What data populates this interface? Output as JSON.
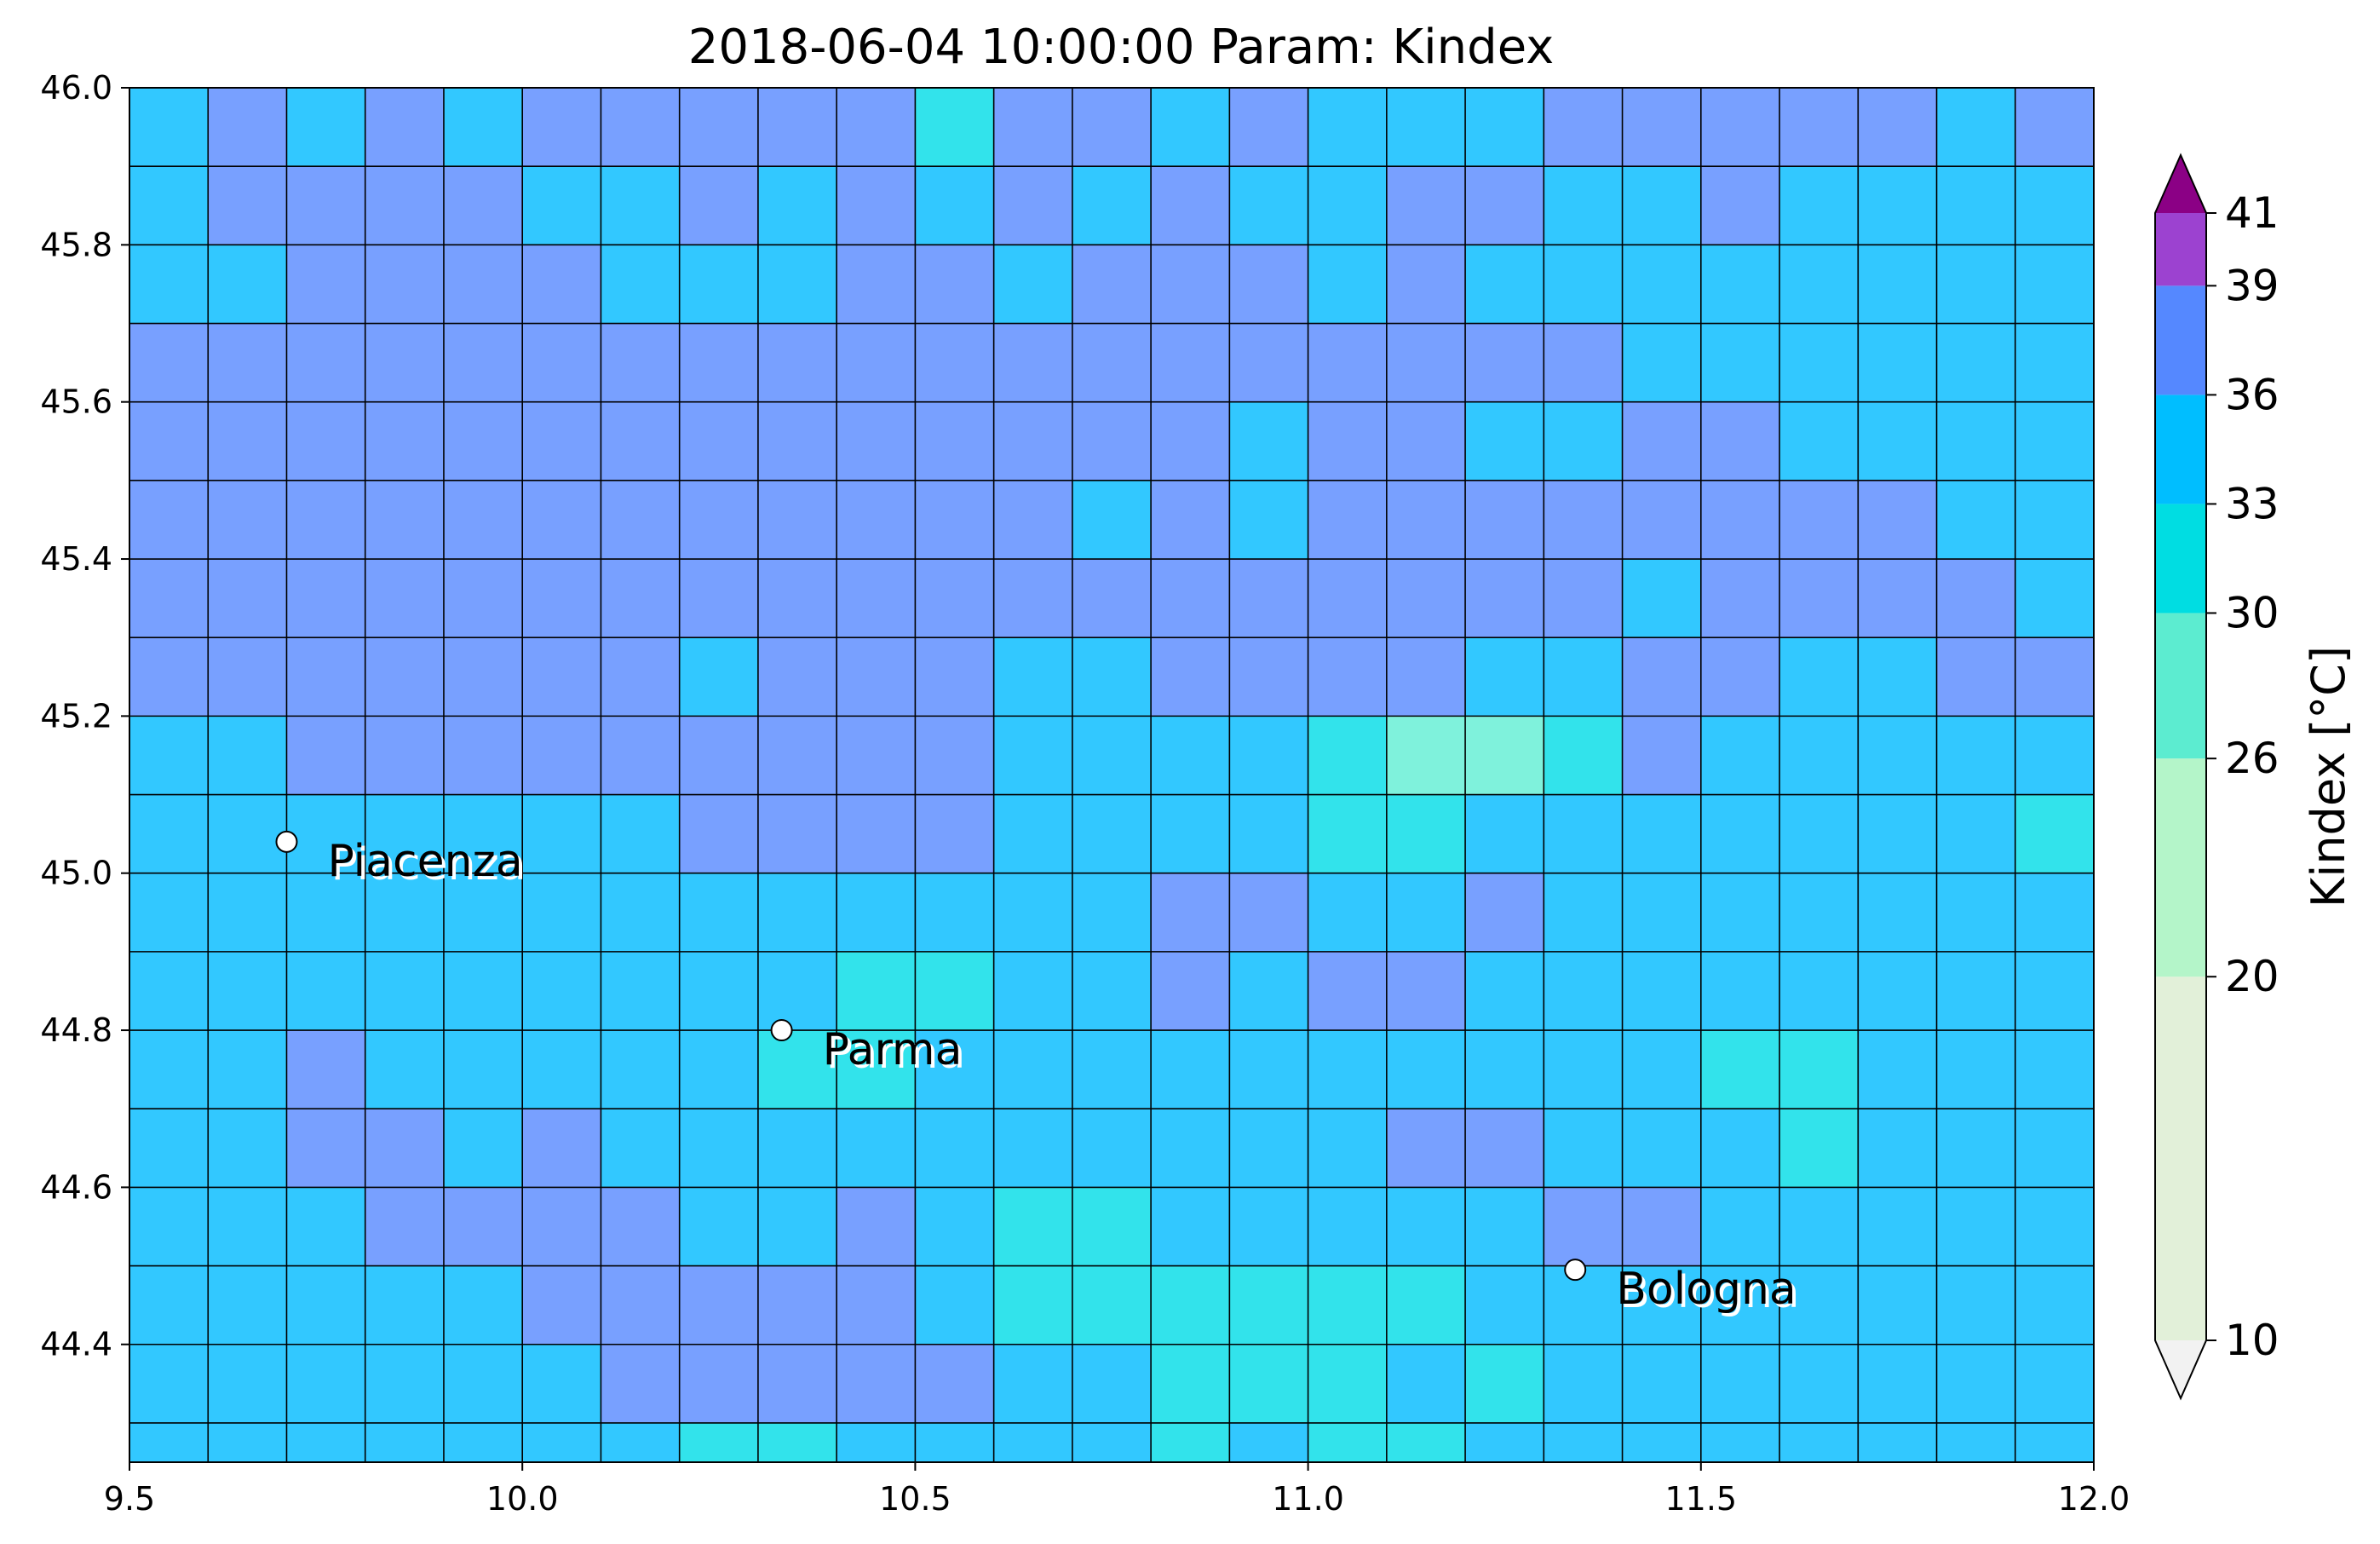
{
  "chart_data": {
    "type": "heatmap",
    "title": "2018-06-04 10:00:00 Param: Kindex",
    "xlim": [
      9.5,
      12.0
    ],
    "ylim": [
      44.25,
      46.0
    ],
    "grid_cells": {
      "x_edges": [
        9.5,
        9.6,
        9.7,
        9.8,
        9.9,
        10.0,
        10.1,
        10.2,
        10.3,
        10.4,
        10.5,
        10.6,
        10.7,
        10.8,
        10.9,
        11.0,
        11.1,
        11.2,
        11.3,
        11.4,
        11.5,
        11.6,
        11.7,
        11.8,
        11.9,
        12.0
      ],
      "y_edges_top_to_bottom": [
        46.0,
        45.9,
        45.8,
        45.7,
        45.6,
        45.5,
        45.4,
        45.3,
        45.2,
        45.1,
        45.0,
        44.9,
        44.8,
        44.7,
        44.6,
        44.5,
        44.4,
        44.3,
        44.25
      ],
      "class_legend": {
        "p": "36-39",
        "b": "33-36",
        "t": "30-33",
        "g": "26-30"
      },
      "rows_top_to_bottom": [
        "bpbpbpppppt pbpbbbpppppbp",
        "bppppbbpbpbpbpbbppbbpbbbb",
        "bbppppbbbppbpppbpbbbbbbbb",
        "pppppppppppppppppppbbbbbb",
        "ppppppppppppppbppbbppbbbb",
        "ppppppppppppbpbppppppppbb",
        "pppppppppppppppppppbppppb",
        "pppppppbpppbbppppbbppbbpp",
        "bbpppppppppbbbbtggtpbbbbb",
        "bbbbbbbppppbbbbttbbbbbbbt",
        "bbbbbbbbbbbbbppbbpbbbbbbb",
        "bbbbbbbbbttbbpbppbbbbbbbb",
        "bbpbbbbbttbbbbbbbbbbttbbb",
        "bbppbpbbbbbbbbbbppbbbtbbb",
        "bbbppppbbpbttbbbbbppbbbbb",
        "bbbbbpppppbttttttbbbbbbbb",
        "bbbbbbpppppbbtttbtbbbbbbb",
        "bbbbbbbttbbbbtbttbbbbbbbb"
      ]
    },
    "x_ticks": [
      {
        "value": 9.5,
        "label": "9.5"
      },
      {
        "value": 10.0,
        "label": "10.0"
      },
      {
        "value": 10.5,
        "label": "10.5"
      },
      {
        "value": 11.0,
        "label": "11.0"
      },
      {
        "value": 11.5,
        "label": "11.5"
      },
      {
        "value": 12.0,
        "label": "12.0"
      }
    ],
    "y_ticks": [
      {
        "value": 44.4,
        "label": "44.4"
      },
      {
        "value": 44.6,
        "label": "44.6"
      },
      {
        "value": 44.8,
        "label": "44.8"
      },
      {
        "value": 45.0,
        "label": "45.0"
      },
      {
        "value": 45.2,
        "label": "45.2"
      },
      {
        "value": 45.4,
        "label": "45.4"
      },
      {
        "value": 45.6,
        "label": "45.6"
      },
      {
        "value": 45.8,
        "label": "45.8"
      },
      {
        "value": 46.0,
        "label": "46.0"
      }
    ],
    "colorbar": {
      "label": "Kindex [°C]",
      "boundaries": [
        10,
        20,
        26,
        30,
        33,
        36,
        39,
        41
      ],
      "tick_labels": [
        "10",
        "20",
        "26",
        "30",
        "33",
        "36",
        "39",
        "41"
      ],
      "colors": [
        "#e2f0d9",
        "#b4f5c9",
        "#5cecd0",
        "#00dde2",
        "#00beff",
        "#5588ff",
        "#9c42d0"
      ],
      "under_color": "#f2f2f2",
      "over_color": "#8b0085",
      "extend": "both"
    },
    "cities": [
      {
        "name": "Piacenza",
        "lon": 9.7,
        "lat": 45.04
      },
      {
        "name": "Parma",
        "lon": 10.33,
        "lat": 44.8
      },
      {
        "name": "Bologna",
        "lon": 11.34,
        "lat": 44.495
      }
    ],
    "cell_colors": {
      "p": "#78a0ff",
      "b": "#32c8ff",
      "t": "#32e3eb",
      "g": "#7ff2dc"
    }
  }
}
